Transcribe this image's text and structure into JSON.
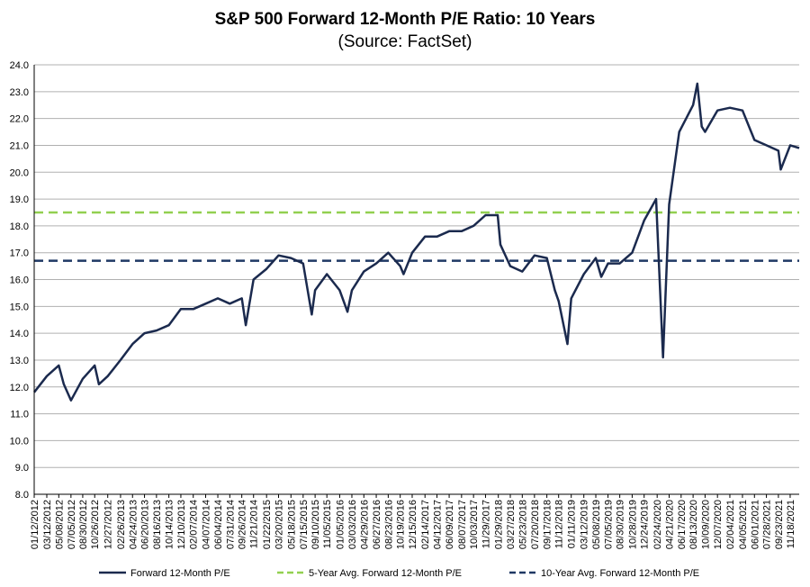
{
  "chart_data": {
    "type": "line",
    "title": "S&P 500 Forward 12-Month P/E Ratio: 10 Years",
    "subtitle": "(Source: FactSet)",
    "ylim": [
      8.0,
      24.0
    ],
    "y_ticks": [
      "8.0",
      "9.0",
      "10.0",
      "11.0",
      "12.0",
      "13.0",
      "14.0",
      "15.0",
      "16.0",
      "17.0",
      "18.0",
      "19.0",
      "20.0",
      "21.0",
      "22.0",
      "23.0",
      "24.0"
    ],
    "x_ticks": [
      "01/12/2012",
      "03/12/2012",
      "05/08/2012",
      "07/05/2012",
      "08/30/2012",
      "10/26/2012",
      "12/27/2012",
      "02/26/2013",
      "04/24/2013",
      "06/20/2013",
      "08/16/2013",
      "10/14/2013",
      "12/10/2013",
      "02/07/2014",
      "04/07/2014",
      "06/04/2014",
      "07/31/2014",
      "09/26/2014",
      "11/21/2014",
      "01/22/2015",
      "03/20/2015",
      "05/18/2015",
      "07/15/2015",
      "09/10/2015",
      "11/05/2015",
      "01/05/2016",
      "03/03/2016",
      "04/29/2016",
      "06/27/2016",
      "08/23/2016",
      "10/19/2016",
      "12/15/2016",
      "02/14/2017",
      "04/12/2017",
      "06/09/2017",
      "08/07/2017",
      "10/03/2017",
      "11/29/2017",
      "01/29/2018",
      "03/27/2018",
      "05/23/2018",
      "07/20/2018",
      "09/17/2018",
      "11/12/2018",
      "01/11/2019",
      "03/12/2019",
      "05/08/2019",
      "07/05/2019",
      "08/30/2019",
      "10/28/2019",
      "12/24/2019",
      "02/24/2020",
      "04/21/2020",
      "06/17/2020",
      "08/13/2020",
      "10/09/2020",
      "12/07/2020",
      "02/04/2021",
      "04/05/2021",
      "06/01/2021",
      "07/28/2021",
      "09/23/2021",
      "11/18/2021"
    ],
    "grid": true,
    "legend_position": "bottom",
    "series": [
      {
        "name": "Forward 12-Month P/E",
        "color": "#1b2a4e",
        "style": "solid",
        "x": [
          "01/12/2012",
          "03/12/2012",
          "05/08/2012",
          "06/01/2012",
          "07/05/2012",
          "08/30/2012",
          "10/26/2012",
          "11/15/2012",
          "12/27/2012",
          "02/26/2013",
          "04/24/2013",
          "06/20/2013",
          "08/16/2013",
          "10/14/2013",
          "12/10/2013",
          "02/07/2014",
          "04/07/2014",
          "06/04/2014",
          "07/31/2014",
          "09/26/2014",
          "10/15/2014",
          "11/21/2014",
          "01/22/2015",
          "03/20/2015",
          "05/18/2015",
          "07/15/2015",
          "08/25/2015",
          "09/10/2015",
          "11/05/2015",
          "01/05/2016",
          "02/11/2016",
          "03/03/2016",
          "04/29/2016",
          "06/27/2016",
          "08/23/2016",
          "10/19/2016",
          "11/04/2016",
          "12/15/2016",
          "02/14/2017",
          "04/12/2017",
          "06/09/2017",
          "08/07/2017",
          "10/03/2017",
          "11/29/2017",
          "01/26/2018",
          "02/08/2018",
          "03/27/2018",
          "05/23/2018",
          "07/20/2018",
          "09/17/2018",
          "10/25/2018",
          "11/12/2018",
          "12/24/2018",
          "01/11/2019",
          "03/12/2019",
          "05/08/2019",
          "06/03/2019",
          "07/05/2019",
          "08/30/2019",
          "10/28/2019",
          "12/24/2019",
          "02/19/2020",
          "03/23/2020",
          "04/21/2020",
          "06/08/2020",
          "08/13/2020",
          "09/02/2020",
          "09/23/2020",
          "10/09/2020",
          "12/07/2020",
          "02/04/2021",
          "04/05/2021",
          "06/01/2021",
          "07/28/2021",
          "09/23/2021",
          "10/04/2021",
          "11/18/2021",
          "12/31/2021"
        ],
        "values": [
          11.8,
          12.4,
          12.8,
          12.1,
          11.5,
          12.3,
          12.8,
          12.1,
          12.4,
          13.0,
          13.6,
          14.0,
          14.1,
          14.3,
          14.9,
          14.9,
          15.1,
          15.3,
          15.1,
          15.3,
          14.3,
          16.0,
          16.4,
          16.9,
          16.8,
          16.6,
          14.7,
          15.6,
          16.2,
          15.6,
          14.8,
          15.6,
          16.3,
          16.6,
          17.0,
          16.5,
          16.2,
          17.0,
          17.6,
          17.6,
          17.8,
          17.8,
          18.0,
          18.4,
          18.4,
          17.3,
          16.5,
          16.3,
          16.9,
          16.8,
          15.6,
          15.2,
          13.6,
          15.3,
          16.2,
          16.8,
          16.1,
          16.6,
          16.6,
          17.0,
          18.2,
          19.0,
          13.1,
          18.8,
          21.5,
          22.5,
          23.3,
          21.7,
          21.5,
          22.3,
          22.4,
          22.3,
          21.2,
          21.0,
          20.8,
          20.1,
          21.0,
          20.9
        ]
      },
      {
        "name": "5-Year Avg. Forward 12-Month P/E",
        "color": "#92d050",
        "style": "dashed",
        "value": 18.5
      },
      {
        "name": "10-Year Avg. Forward 12-Month P/E",
        "color": "#1f3864",
        "style": "dashed",
        "value": 16.7
      }
    ]
  }
}
